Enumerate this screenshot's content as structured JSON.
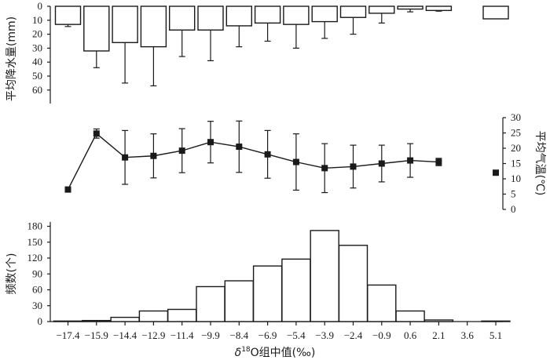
{
  "chart_data": [
    {
      "type": "bar",
      "panel": "top",
      "ylabel": "平均降水量(mm)",
      "ylim": [
        0,
        70
      ],
      "yticks": [
        0,
        10,
        20,
        30,
        40,
        50,
        60
      ],
      "y_inverted": true,
      "categories": [
        "-17.4",
        "-15.9",
        "-14.4",
        "-12.9",
        "-11.4",
        "-9.9",
        "-8.4",
        "-6.9",
        "-5.4",
        "-3.9",
        "-2.4",
        "-0.9",
        "0.6",
        "2.1",
        "3.6",
        "5.1"
      ],
      "values": [
        13,
        32,
        26,
        29,
        17,
        17,
        14,
        12,
        13,
        11,
        8,
        5,
        2,
        3,
        null,
        9
      ],
      "error": [
        1.5,
        12,
        29,
        28,
        19,
        22,
        15,
        13,
        17,
        12,
        12,
        7,
        2,
        0.5,
        null,
        0
      ]
    },
    {
      "type": "line",
      "panel": "middle",
      "ylabel": "平均气温(℃)",
      "ylim": [
        0,
        30
      ],
      "yticks": [
        0,
        5,
        10,
        15,
        20,
        25,
        30
      ],
      "y_axis_side": "right",
      "x": [
        -17.4,
        -15.9,
        -14.4,
        -12.9,
        -11.4,
        -9.9,
        -8.4,
        -6.9,
        -5.4,
        -3.9,
        -2.4,
        -0.9,
        0.6,
        2.1,
        5.1
      ],
      "values": [
        6.5,
        24.8,
        17,
        17.5,
        19.2,
        22,
        20.5,
        18,
        15.5,
        13.5,
        14,
        15,
        16,
        15.5,
        12
      ],
      "error": [
        0.6,
        1.5,
        8.8,
        7.2,
        7.2,
        6.8,
        8.4,
        7.8,
        9.2,
        8,
        7,
        6,
        5.5,
        1.2,
        0
      ],
      "connected_count": 14
    },
    {
      "type": "bar",
      "panel": "bottom",
      "ylabel": "频数(个)",
      "xlabel_parts": [
        "δ",
        "18",
        "O组中值(‰)"
      ],
      "ylim": [
        0,
        180
      ],
      "yticks": [
        0,
        30,
        60,
        90,
        120,
        150,
        180
      ],
      "categories": [
        "-17.4",
        "-15.9",
        "-14.4",
        "-12.9",
        "-11.4",
        "-9.9",
        "-8.4",
        "-6.9",
        "-5.4",
        "-3.9",
        "-2.4",
        "-0.9",
        "0.6",
        "2.1",
        "3.6",
        "5.1"
      ],
      "tick_labels": [
        "−17.4",
        "−15.9",
        "−14.4",
        "−12.9",
        "−11.4",
        "−9.9",
        "−8.4",
        "−6.9",
        "−5.4",
        "−3.9",
        "−2.4",
        "−0.9",
        "0.6",
        "2.1",
        "3.6",
        "5.1"
      ],
      "values": [
        1,
        2,
        8,
        20,
        23,
        66,
        77,
        105,
        118,
        172,
        144,
        69,
        20,
        3,
        0,
        1
      ]
    }
  ]
}
